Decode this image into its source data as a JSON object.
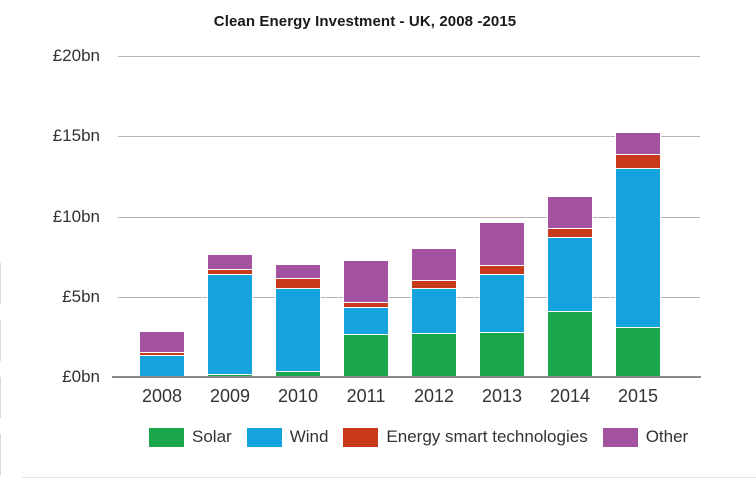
{
  "colors": {
    "solar": "#1aa64a",
    "wind": "#14a3dd",
    "est": "#c9391b",
    "other": "#a352a0",
    "gridline": "#b5b5b5",
    "axis_line": "#8a8a8a",
    "text": "#333333"
  },
  "chart_data": {
    "type": "bar",
    "stacked": true,
    "title": "Clean Energy Investment - UK, 2008 -2015",
    "categories": [
      "2008",
      "2009",
      "2010",
      "2011",
      "2012",
      "2013",
      "2014",
      "2015"
    ],
    "series": [
      {
        "name": "Solar",
        "color_key": "solar",
        "values": [
          0,
          0.2,
          0.35,
          2.7,
          2.75,
          2.8,
          4.1,
          3.1
        ]
      },
      {
        "name": "Wind",
        "color_key": "wind",
        "values": [
          1.4,
          6.2,
          5.2,
          1.65,
          2.8,
          3.6,
          4.6,
          9.9
        ]
      },
      {
        "name": "Energy smart technologies",
        "color_key": "est",
        "values": [
          0.15,
          0.3,
          0.6,
          0.35,
          0.5,
          0.6,
          0.6,
          0.9
        ]
      },
      {
        "name": "Other",
        "color_key": "other",
        "values": [
          1.25,
          0.9,
          0.85,
          2.5,
          1.95,
          2.6,
          1.9,
          1.3
        ]
      }
    ],
    "totals": [
      2.8,
      7.6,
      7.0,
      7.2,
      8.0,
      9.6,
      11.2,
      15.2
    ],
    "xlabel": "",
    "ylabel": "",
    "ymax": 20,
    "ylim": [
      0,
      20
    ],
    "ticks": [
      {
        "value": 0,
        "label": "£0bn"
      },
      {
        "value": 5,
        "label": "£5bn"
      },
      {
        "value": 10,
        "label": "£10bn"
      },
      {
        "value": 15,
        "label": "£15bn"
      },
      {
        "value": 20,
        "label": "£20bn"
      }
    ],
    "grid": true,
    "legend_position": "bottom",
    "legend_entries": [
      "Solar",
      "Wind",
      "Energy smart technologies",
      "Other"
    ]
  }
}
